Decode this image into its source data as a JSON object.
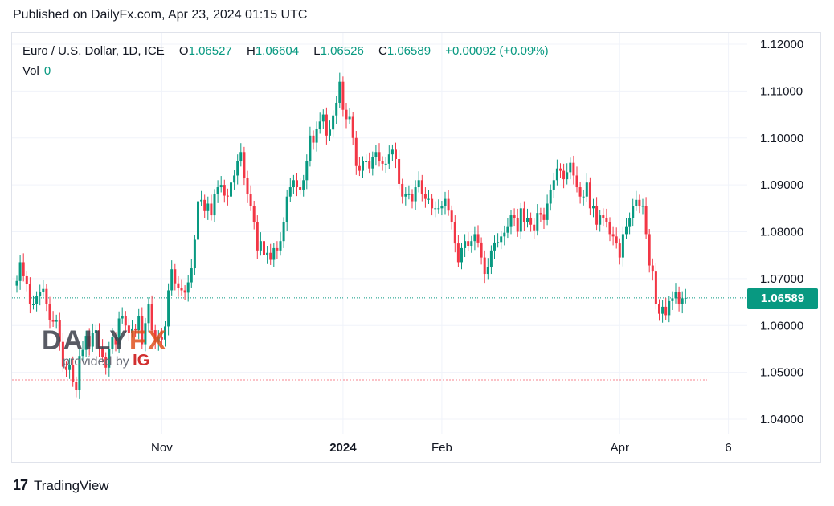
{
  "header": {
    "published": "Published on DailyFx.com, Apr 23, 2024 01:15 UTC"
  },
  "legend": {
    "symbol": "Euro / U.S. Dollar, 1D, ICE",
    "o_label": "O",
    "o_value": "1.06527",
    "h_label": "H",
    "h_value": "1.06604",
    "l_label": "L",
    "l_value": "1.06526",
    "c_label": "C",
    "c_value": "1.06589",
    "change": "+0.00092 (+0.09%)",
    "vol_label": "Vol",
    "vol_value": "0"
  },
  "price_tag": "1.06589",
  "watermark": {
    "brand_left": "DAILY",
    "brand_right": "FX",
    "provided": "provided by",
    "ig": "IG"
  },
  "footer": {
    "logo": "17",
    "brand": "TradingView"
  },
  "colors": {
    "up": "#089981",
    "down": "#f23645",
    "grid": "#f0f3fa",
    "axis_text": "#131722",
    "last_line": "#089981",
    "support_line": "#f23645"
  },
  "chart_data": {
    "type": "candlestick",
    "y_ticks": [
      "1.12000",
      "1.11000",
      "1.10000",
      "1.09000",
      "1.08000",
      "1.07000",
      "1.06000",
      "1.05000",
      "1.04000"
    ],
    "ylim": [
      1.038,
      1.1235
    ],
    "x_ticks": [
      {
        "label": "Nov",
        "index": 44,
        "bold": false
      },
      {
        "label": "2024",
        "index": 99,
        "bold": true
      },
      {
        "label": "Feb",
        "index": 129,
        "bold": false
      },
      {
        "label": "Apr",
        "index": 183,
        "bold": false
      },
      {
        "label": "6",
        "index": 216,
        "bold": false
      }
    ],
    "candle_count": 221,
    "last_price": 1.06589,
    "support_level": 1.0484,
    "closes": [
      1.0695,
      1.0735,
      1.0705,
      1.0688,
      1.0645,
      1.0645,
      1.0662,
      1.0672,
      1.0678,
      1.0646,
      1.0612,
      1.0608,
      1.0612,
      1.0565,
      1.0512,
      1.0505,
      1.0515,
      1.048,
      1.0462,
      1.0535,
      1.0548,
      1.0578,
      1.0555,
      1.0585,
      1.059,
      1.0552,
      1.0532,
      1.051,
      1.055,
      1.0575,
      1.056,
      1.0615,
      1.062,
      1.06,
      1.0585,
      1.0592,
      1.059,
      1.062,
      1.056,
      1.0605,
      1.0645,
      1.059,
      1.0565,
      1.0575,
      1.057,
      1.0598,
      1.0675,
      1.072,
      1.069,
      1.068,
      1.0675,
      1.067,
      1.0692,
      1.0722,
      1.0783,
      1.0865,
      1.0868,
      1.0844,
      1.086,
      1.0835,
      1.088,
      1.0895,
      1.09,
      1.0877,
      1.0875,
      1.0905,
      1.092,
      1.095,
      1.097,
      1.0915,
      1.088,
      1.0855,
      1.082,
      1.076,
      1.078,
      1.075,
      1.0755,
      1.074,
      1.0765,
      1.076,
      1.078,
      1.082,
      1.0875,
      1.0895,
      1.091,
      1.0895,
      1.089,
      1.091,
      1.095,
      1.1005,
      1.099,
      1.102,
      1.1035,
      1.105,
      1.1005,
      1.1018,
      1.1048,
      1.1075,
      1.112,
      1.106,
      1.104,
      1.1045,
      1.1,
      1.094,
      1.093,
      1.095,
      1.095,
      1.0935,
      1.096,
      1.097,
      1.095,
      1.0945,
      1.0945,
      1.0965,
      1.0975,
      1.0955,
      1.0902,
      1.0875,
      1.088,
      1.088,
      1.0865,
      1.0895,
      1.091,
      1.088,
      1.087,
      1.087,
      1.085,
      1.085,
      1.085,
      1.0855,
      1.087,
      1.0845,
      1.082,
      1.0775,
      1.0735,
      1.0765,
      1.078,
      1.077,
      1.078,
      1.0795,
      1.0777,
      1.0745,
      1.071,
      1.0725,
      1.076,
      1.0777,
      1.0778,
      1.079,
      1.0798,
      1.081,
      1.0835,
      1.083,
      1.08,
      1.085,
      1.082,
      1.083,
      1.0815,
      1.0803,
      1.084,
      1.0836,
      1.0825,
      1.086,
      1.089,
      1.091,
      1.0935,
      1.093,
      1.0912,
      1.0927,
      1.0947,
      1.092,
      1.0895,
      1.0875,
      1.0875,
      1.0905,
      1.085,
      1.0855,
      1.0815,
      1.0835,
      1.083,
      1.082,
      1.0795,
      1.079,
      1.0775,
      1.0745,
      1.0795,
      1.081,
      1.083,
      1.0855,
      1.0868,
      1.0855,
      1.0855,
      1.0795,
      1.0728,
      1.0715,
      1.0645,
      1.0625,
      1.064,
      1.0622,
      1.0652,
      1.0658,
      1.0672,
      1.0645,
      1.0658,
      1.0659
    ]
  }
}
